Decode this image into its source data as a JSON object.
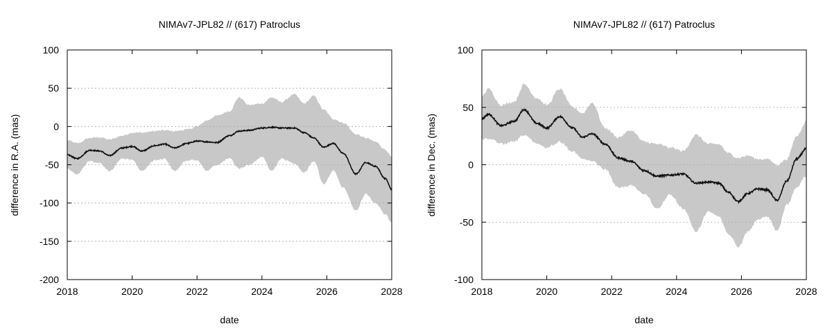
{
  "chart_data": [
    {
      "type": "line",
      "title": "NIMAv7-JPL82 // (617) Patroclus",
      "xlabel": "date",
      "ylabel": "difference in R.A. (mas)",
      "xlim": [
        2018,
        2028
      ],
      "ylim": [
        -200,
        100
      ],
      "xticks": [
        2018,
        2020,
        2022,
        2024,
        2026,
        2028
      ],
      "yticks": [
        -200,
        -150,
        -100,
        -50,
        0,
        50,
        100
      ],
      "grid": "horizontal-dotted",
      "colors": {
        "line": "#111111",
        "band": "#c8c8c8"
      },
      "series": [
        {
          "x": [
            2018.0,
            2018.3,
            2018.7,
            2019.0,
            2019.3,
            2019.7,
            2020.0,
            2020.3,
            2020.7,
            2021.0,
            2021.3,
            2021.7,
            2022.0,
            2022.3,
            2022.6,
            2023.0,
            2023.3,
            2023.6,
            2024.0,
            2024.3,
            2024.6,
            2025.0,
            2025.3,
            2025.6,
            2025.9,
            2026.2,
            2026.5,
            2026.9,
            2027.2,
            2027.5,
            2027.8,
            2028.0
          ],
          "y": [
            -37,
            -42,
            -31,
            -32,
            -38,
            -28,
            -26,
            -32,
            -25,
            -23,
            -28,
            -22,
            -19,
            -20,
            -21,
            -12,
            -6,
            -5,
            -2,
            -1,
            -2,
            -2,
            -8,
            -15,
            -27,
            -22,
            -35,
            -62,
            -47,
            -52,
            -68,
            -82
          ],
          "lower": [
            -55,
            -62,
            -45,
            -48,
            -58,
            -42,
            -44,
            -58,
            -44,
            -42,
            -58,
            -44,
            -44,
            -58,
            -50,
            -42,
            -55,
            -50,
            -40,
            -58,
            -42,
            -48,
            -60,
            -45,
            -75,
            -58,
            -80,
            -110,
            -88,
            -100,
            -115,
            -125
          ],
          "upper": [
            -18,
            -22,
            -15,
            -14,
            -17,
            -12,
            -8,
            -8,
            -6,
            -5,
            -6,
            -4,
            0,
            8,
            14,
            20,
            38,
            28,
            30,
            38,
            32,
            42,
            30,
            40,
            22,
            10,
            5,
            -10,
            -15,
            -20,
            -30,
            -40
          ]
        }
      ]
    },
    {
      "type": "line",
      "title": "NIMAv7-JPL82 // (617) Patroclus",
      "xlabel": "date",
      "ylabel": "difference in Dec. (mas)",
      "xlim": [
        2018,
        2028
      ],
      "ylim": [
        -100,
        100
      ],
      "xticks": [
        2018,
        2020,
        2022,
        2024,
        2026,
        2028
      ],
      "yticks": [
        -100,
        -50,
        0,
        50,
        100
      ],
      "grid": "horizontal-dotted",
      "colors": {
        "line": "#111111",
        "band": "#c8c8c8"
      },
      "series": [
        {
          "x": [
            2018.0,
            2018.2,
            2018.6,
            2019.0,
            2019.3,
            2019.7,
            2020.0,
            2020.4,
            2020.8,
            2021.1,
            2021.4,
            2021.8,
            2022.2,
            2022.6,
            2023.0,
            2023.4,
            2023.8,
            2024.2,
            2024.6,
            2025.0,
            2025.3,
            2025.6,
            2025.9,
            2026.2,
            2026.5,
            2026.8,
            2027.1,
            2027.4,
            2027.7,
            2028.0
          ],
          "y": [
            40,
            44,
            34,
            38,
            48,
            36,
            32,
            42,
            32,
            24,
            27,
            18,
            6,
            3,
            -5,
            -10,
            -9,
            -8,
            -16,
            -15,
            -16,
            -24,
            -32,
            -25,
            -21,
            -22,
            -31,
            -14,
            5,
            14
          ],
          "lower": [
            22,
            23,
            18,
            20,
            26,
            18,
            15,
            20,
            12,
            5,
            3,
            -4,
            -20,
            -18,
            -25,
            -38,
            -26,
            -38,
            -58,
            -40,
            -45,
            -60,
            -72,
            -58,
            -48,
            -45,
            -58,
            -35,
            -20,
            -10
          ],
          "upper": [
            60,
            66,
            52,
            55,
            70,
            58,
            52,
            66,
            50,
            45,
            54,
            32,
            24,
            30,
            20,
            18,
            15,
            12,
            26,
            18,
            18,
            10,
            6,
            8,
            5,
            5,
            0,
            5,
            25,
            38
          ]
        }
      ]
    }
  ]
}
